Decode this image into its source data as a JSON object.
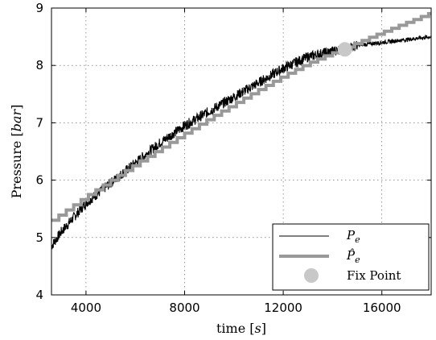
{
  "chart_data": {
    "type": "line",
    "title": "",
    "xlabel_text": "time ",
    "xlabel_unit": "s",
    "ylabel_text": "Pressure ",
    "ylabel_unit": "bar",
    "xlim": [
      2600,
      18000
    ],
    "ylim": [
      4,
      9
    ],
    "xticks": [
      4000,
      8000,
      12000,
      16000
    ],
    "yticks": [
      4,
      5,
      6,
      7,
      8,
      9
    ],
    "xtick_labels": [
      "4000",
      "8000",
      "12000",
      "16000"
    ],
    "ytick_labels": [
      "4",
      "5",
      "6",
      "7",
      "8",
      "9"
    ],
    "grid": true,
    "legend_position": "bottom-right",
    "series": [
      {
        "name": "P_e",
        "legend_main": "P",
        "legend_sub": "e",
        "color": "#000000",
        "style": "noisy measured line",
        "x": [
          2600,
          3000,
          4000,
          5000,
          6000,
          7000,
          8000,
          9000,
          10000,
          11000,
          12000,
          13000,
          14000,
          14500,
          15000,
          16000,
          17000,
          18000
        ],
        "y": [
          4.85,
          5.1,
          5.6,
          5.95,
          6.3,
          6.65,
          6.95,
          7.2,
          7.45,
          7.7,
          7.95,
          8.15,
          8.25,
          8.3,
          8.35,
          8.4,
          8.45,
          8.5
        ]
      },
      {
        "name": "P̂_e",
        "legend_main": "P̂",
        "legend_sub": "e",
        "color": "#999999",
        "style": "thick stepped line",
        "x": [
          2600,
          3000,
          4000,
          5000,
          6000,
          7000,
          8000,
          9000,
          10000,
          11000,
          12000,
          13000,
          14000,
          14500,
          15000,
          16000,
          17000,
          18000
        ],
        "y": [
          5.3,
          5.42,
          5.72,
          6.0,
          6.28,
          6.55,
          6.82,
          7.08,
          7.33,
          7.58,
          7.82,
          8.04,
          8.22,
          8.3,
          8.4,
          8.58,
          8.75,
          8.92
        ]
      }
    ],
    "markers": [
      {
        "name": "Fix Point",
        "label": "Fix Point",
        "x": 14500,
        "y": 8.28,
        "color": "#c8c8c8"
      }
    ]
  }
}
